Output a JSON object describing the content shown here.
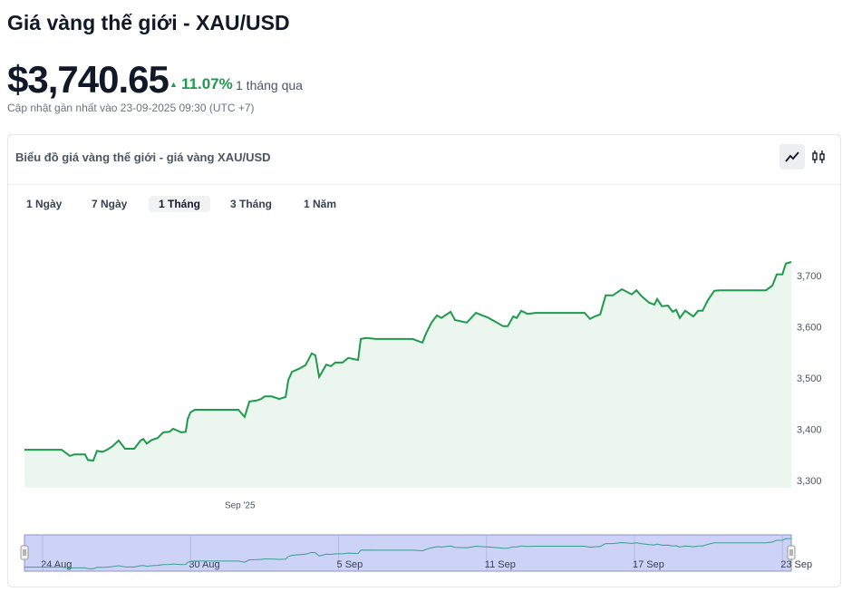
{
  "header": {
    "title": "Giá vàng thế giới - XAU/USD",
    "price": "$3,740.65",
    "change": "11.07%",
    "period": "1 tháng qua",
    "updated": "Cập nhật gần nhất vào 23-09-2025 09:30 (UTC +7)"
  },
  "controls": {
    "ranges": [
      "1 Ngày",
      "7 Ngày",
      "1 Tháng",
      "3 Tháng",
      "1 Năm"
    ]
  },
  "chart_data": {
    "type": "line",
    "title": "Biểu đồ giá vàng thế giới - giá vàng XAU/USD",
    "color": "#1e9a4c",
    "area_color": "#eaf6ee",
    "x": [
      0,
      1.51,
      1.84,
      2.02,
      2.46,
      2.57,
      2.79,
      2.94,
      3.16,
      3.35,
      3.57,
      3.82,
      4.08,
      4.45,
      4.71,
      4.82,
      4.96,
      5.15,
      5.4,
      5.63,
      5.88,
      6.03,
      6.36,
      6.54,
      6.62,
      6.73,
      6.91,
      8.68,
      8.93,
      9.12,
      9.41,
      9.6,
      9.74,
      10.04,
      10.33,
      10.59,
      10.7,
      10.85,
      11.14,
      11.4,
      11.65,
      11.8,
      11.95,
      12.24,
      12.43,
      12.61,
      12.9,
      13.13,
      13.53,
      13.64,
      13.86,
      14.26,
      15.74,
      16.14,
      16.29,
      16.51,
      16.73,
      16.91,
      17.28,
      17.46,
      17.94,
      18.31,
      18.57,
      18.79,
      19.23,
      19.41,
      19.6,
      19.82,
      19.96,
      20.15,
      20.4,
      20.74,
      22.72,
      22.94,
      23.13,
      23.35,
      23.57,
      23.86,
      24.23,
      24.63,
      24.82,
      25.04,
      25.33,
      25.55,
      25.66,
      25.85,
      26.1,
      26.29,
      26.43,
      26.58,
      26.8,
      27.13,
      27.32,
      27.5,
      27.72,
      27.98,
      28.2,
      30.07,
      30.33,
      30.51,
      30.74,
      30.88,
      31.1
    ],
    "values": [
      3362,
      3362,
      3350,
      3353,
      3353,
      3342,
      3341,
      3360,
      3358,
      3362,
      3369,
      3380,
      3364,
      3364,
      3380,
      3383,
      3374,
      3381,
      3385,
      3396,
      3397,
      3403,
      3396,
      3397,
      3422,
      3435,
      3440,
      3440,
      3426,
      3456,
      3458,
      3461,
      3466,
      3466,
      3461,
      3465,
      3498,
      3514,
      3520,
      3527,
      3550,
      3546,
      3504,
      3528,
      3525,
      3532,
      3532,
      3541,
      3537,
      3578,
      3580,
      3578,
      3578,
      3571,
      3589,
      3610,
      3624,
      3619,
      3631,
      3615,
      3610,
      3629,
      3624,
      3620,
      3608,
      3603,
      3603,
      3622,
      3619,
      3633,
      3627,
      3629,
      3629,
      3617,
      3622,
      3626,
      3663,
      3663,
      3675,
      3665,
      3673,
      3661,
      3649,
      3645,
      3656,
      3642,
      3643,
      3631,
      3635,
      3619,
      3633,
      3622,
      3633,
      3633,
      3654,
      3672,
      3673,
      3673,
      3682,
      3704,
      3704,
      3725,
      3728
    ],
    "xlim": [
      0,
      31.1
    ],
    "ylim": [
      3288,
      3797
    ],
    "yticks": [
      {
        "value": 3300,
        "label": "3,300"
      },
      {
        "value": 3400,
        "label": "3,400"
      },
      {
        "value": 3500,
        "label": "3,500"
      },
      {
        "value": 3600,
        "label": "3,600"
      },
      {
        "value": 3700,
        "label": "3,700"
      }
    ],
    "xticks": [
      {
        "value": 8.74,
        "label": "Sep '25"
      }
    ],
    "navigator": {
      "color": "#3a9e8e",
      "fill": "#cdd3f7",
      "xticks": [
        {
          "value": 0.74,
          "label": "24 Aug"
        },
        {
          "value": 6.74,
          "label": "30 Aug"
        },
        {
          "value": 12.74,
          "label": "5 Sep"
        },
        {
          "value": 18.74,
          "label": "11 Sep"
        },
        {
          "value": 24.74,
          "label": "17 Sep"
        },
        {
          "value": 30.74,
          "label": "23 Sep"
        }
      ]
    }
  }
}
